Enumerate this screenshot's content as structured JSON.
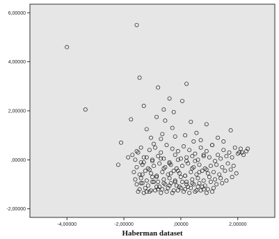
{
  "chart_data": {
    "type": "scatter",
    "title": "",
    "xlabel": "Haberman dataset",
    "ylabel": "",
    "xlim": [
      -5.3,
      3.3
    ],
    "ylim": [
      -2.35,
      6.35
    ],
    "xticks": [
      -4,
      -2,
      0,
      2
    ],
    "yticks": [
      -2,
      0,
      2,
      4,
      6
    ],
    "xtick_labels": [
      "-4,00000",
      "-2,00000",
      ",00000",
      "2,00000"
    ],
    "ytick_labels": [
      "-2,00000",
      ",00000",
      "2,00000",
      "4,00000",
      "6,00000"
    ],
    "grid": false,
    "colors": {
      "plot_background": "#e6e6e6",
      "marker_stroke": "#1a1a1a",
      "frame": "#000000"
    },
    "series": [
      {
        "x": [
          -1.55,
          -4.0,
          -3.35,
          -1.45,
          -0.8,
          0.2,
          -0.4,
          -1.3,
          0.05,
          -0.6,
          -1.75,
          -0.85,
          -0.25,
          -2.1,
          -1.2,
          -0.55,
          0.35,
          0.9,
          1.75,
          -2.2,
          -1.55,
          -1.05,
          -0.65,
          -0.3,
          0.15,
          0.55,
          1.3,
          -1.85,
          -1.4,
          -0.95,
          -0.7,
          -0.2,
          0.45,
          0.7,
          1.1,
          1.5,
          -1.7,
          -1.5,
          -1.3,
          -1.1,
          -0.9,
          -0.7,
          -0.5,
          -0.3,
          -0.1,
          0.1,
          0.3,
          0.5,
          0.7,
          0.9,
          1.1,
          1.3,
          1.5,
          1.7,
          1.9,
          2.1,
          2.3,
          -1.6,
          -1.4,
          -1.2,
          -1.0,
          -0.8,
          -0.6,
          -0.4,
          -0.2,
          0.0,
          0.2,
          0.4,
          0.6,
          0.8,
          1.0,
          1.2,
          1.4,
          1.6,
          1.8,
          2.0,
          2.2,
          -1.55,
          -1.35,
          -1.15,
          -0.95,
          -0.75,
          -0.55,
          -0.35,
          -0.15,
          0.05,
          0.25,
          0.45,
          0.65,
          0.85,
          1.05,
          1.25,
          1.45,
          1.65,
          1.85,
          2.05,
          2.35,
          -1.65,
          -1.45,
          -1.25,
          -1.05,
          -0.85,
          -0.65,
          -0.45,
          -0.25,
          -0.05,
          0.15,
          0.35,
          0.55,
          0.75,
          0.95,
          1.15,
          1.35,
          1.55,
          1.75,
          1.95,
          2.15,
          -1.6,
          -1.4,
          -1.2,
          -1.0,
          -0.8,
          -0.6,
          -0.4,
          -0.2,
          0.0,
          0.2,
          0.4,
          0.6,
          0.8,
          1.0,
          1.2,
          1.4,
          1.6,
          1.8,
          -1.55,
          -1.35,
          -1.15,
          -0.95,
          -0.75,
          -0.55,
          -0.35,
          -0.15,
          0.05,
          0.25,
          0.45,
          0.65,
          0.85,
          1.05,
          1.25,
          1.45,
          -1.45,
          -1.25,
          -1.05,
          -0.85,
          -0.65,
          -0.45,
          -0.25,
          -0.05,
          0.15,
          0.35,
          0.55,
          0.75,
          0.95,
          1.15,
          -1.5,
          -1.3,
          -1.1,
          -0.9,
          -0.7,
          -0.5,
          -0.3,
          -0.1,
          0.1,
          0.3,
          0.5,
          0.7,
          0.9,
          1.1,
          -1.4,
          -1.2,
          -1.0,
          -0.8,
          -0.6,
          -0.4,
          -0.2,
          0.0,
          0.2,
          0.4,
          0.6,
          0.8,
          -1.35,
          -1.1,
          -0.85,
          -0.6,
          -0.35,
          -0.1,
          0.15,
          0.4,
          0.65,
          0.9,
          -1.3,
          -1.0,
          -0.7,
          -0.4,
          -0.1,
          0.2,
          0.5,
          0.8
        ],
        "y": [
          5.5,
          4.6,
          2.05,
          3.35,
          2.95,
          3.1,
          2.5,
          2.2,
          2.4,
          2.05,
          1.65,
          1.75,
          1.95,
          0.7,
          1.25,
          1.6,
          1.55,
          1.45,
          1.2,
          -0.2,
          0.35,
          0.9,
          1.05,
          1.3,
          1.0,
          1.1,
          0.9,
          0.1,
          0.5,
          0.65,
          0.85,
          0.95,
          0.75,
          0.8,
          0.6,
          0.75,
          0.2,
          0.3,
          0.1,
          0.4,
          0.5,
          0.3,
          0.6,
          0.45,
          0.35,
          0.55,
          0.4,
          0.25,
          0.5,
          0.35,
          0.6,
          0.2,
          0.4,
          0.3,
          0.5,
          0.45,
          0.35,
          0.0,
          -0.1,
          0.1,
          -0.05,
          0.15,
          0.05,
          -0.1,
          0.2,
          0.05,
          -0.05,
          0.15,
          0.0,
          0.2,
          0.1,
          -0.05,
          0.05,
          0.15,
          0.1,
          0.25,
          0.2,
          -0.3,
          -0.2,
          -0.35,
          -0.25,
          -0.15,
          -0.3,
          -0.2,
          -0.35,
          -0.25,
          -0.15,
          -0.3,
          -0.2,
          -0.35,
          -0.25,
          -0.2,
          -0.3,
          -0.15,
          -0.25,
          0.3,
          0.45,
          -0.5,
          -0.6,
          -0.45,
          -0.55,
          -0.65,
          -0.5,
          -0.6,
          -0.45,
          -0.55,
          -0.65,
          -0.5,
          -0.6,
          -0.45,
          -0.55,
          -0.5,
          -0.6,
          -0.45,
          -0.4,
          -0.55,
          0.3,
          -0.8,
          -0.75,
          -0.85,
          -0.7,
          -0.9,
          -0.8,
          -0.75,
          -0.85,
          -0.7,
          -0.9,
          -0.8,
          -0.75,
          -0.85,
          -0.7,
          -0.8,
          -0.75,
          -0.85,
          -0.7,
          -1.0,
          -0.95,
          -1.05,
          -0.9,
          -1.1,
          -1.0,
          -0.95,
          -1.05,
          -0.9,
          -1.1,
          -1.0,
          -0.95,
          -1.05,
          -0.9,
          -1.0,
          -0.95,
          -1.2,
          -1.15,
          -1.25,
          -1.1,
          -1.2,
          -1.15,
          -1.25,
          -1.1,
          -1.2,
          -1.15,
          -1.25,
          -1.1,
          -1.2,
          -1.15,
          -1.3,
          -1.35,
          -1.3,
          -1.25,
          -1.35,
          -1.3,
          -1.35,
          -1.25,
          -1.3,
          -1.35,
          -1.3,
          -1.25,
          -1.35,
          -1.3,
          -0.95,
          -1.3,
          -0.9,
          -1.2,
          -0.95,
          -1.05,
          -0.9,
          -1.15,
          -1.0,
          -0.95,
          -1.1,
          -1.2,
          -0.6,
          -0.4,
          -0.7,
          -0.35,
          -0.55,
          -0.45,
          -0.65,
          -0.35,
          -0.5,
          -0.4,
          -0.1,
          0.0,
          0.05,
          -0.15,
          0.0,
          0.1,
          -0.05,
          0.15
        ]
      }
    ]
  }
}
